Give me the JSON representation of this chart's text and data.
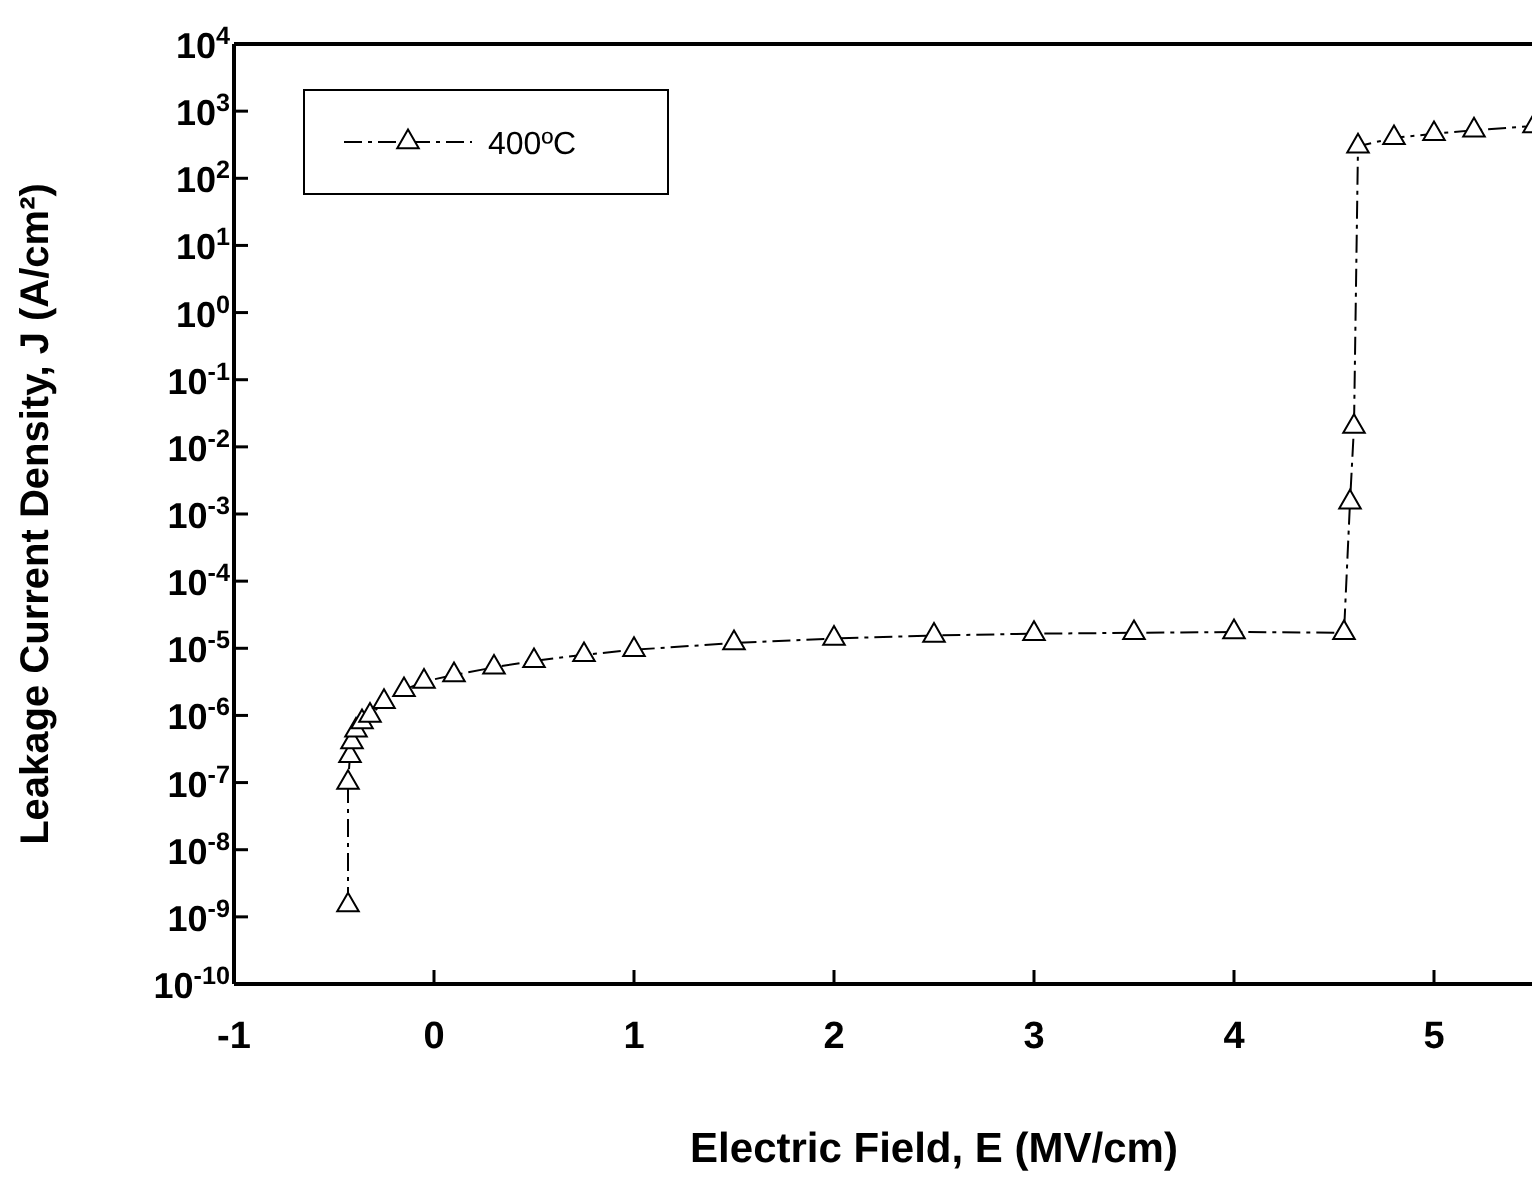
{
  "chart_data": {
    "type": "line",
    "xlabel": "Electric Field, E (MV/cm)",
    "ylabel": "Leakage Current Density, J (A/cm²)",
    "log": "y",
    "xlim": [
      -1,
      5.5
    ],
    "xticks": [
      -1,
      0,
      1,
      2,
      3,
      4,
      5
    ],
    "ylim": [
      1e-10,
      10000
    ],
    "yticks": [
      {
        "value": 1e-10,
        "label": "10$^{-10}$"
      },
      {
        "value": 1e-09,
        "label": "10$^{-9}$"
      },
      {
        "value": 1e-08,
        "label": "10$^{-8}$"
      },
      {
        "value": 1e-07,
        "label": "10$^{-7}$"
      },
      {
        "value": 1e-06,
        "label": "10$^{-6}$"
      },
      {
        "value": 1e-05,
        "label": "10$^{-5}$"
      },
      {
        "value": 0.0001,
        "label": "10$^{-4}$"
      },
      {
        "value": 0.001,
        "label": "10$^{-3}$"
      },
      {
        "value": 0.01,
        "label": "10$^{-2}$"
      },
      {
        "value": 0.1,
        "label": "10$^{-1}$"
      },
      {
        "value": 1,
        "label": "10$^{0}$"
      },
      {
        "value": 10,
        "label": "10$^{1}$"
      },
      {
        "value": 100,
        "label": "10$^{2}$"
      },
      {
        "value": 1000,
        "label": "10$^{3}$"
      },
      {
        "value": 10000,
        "label": "10$^{4}$"
      }
    ],
    "legend": "top left",
    "marker": "triangle",
    "line_style": "dashed",
    "grid": false,
    "series": [
      {
        "name": "400ºC",
        "color": "#000000",
        "x": [
          -0.43,
          -0.43,
          -0.42,
          -0.41,
          -0.39,
          -0.36,
          -0.32,
          -0.25,
          -0.15,
          -0.05,
          0.1,
          0.3,
          0.5,
          0.75,
          1.0,
          1.5,
          2.0,
          2.5,
          3.0,
          3.5,
          4.0,
          4.55,
          4.58,
          4.6,
          4.62,
          4.8,
          5.0,
          5.2,
          5.5
        ],
        "values": [
          1.5e-09,
          1e-07,
          2.5e-07,
          4e-07,
          6e-07,
          8e-07,
          1e-06,
          1.6e-06,
          2.4e-06,
          3.2e-06,
          4e-06,
          5.2e-06,
          6.5e-06,
          8e-06,
          9.5e-06,
          1.2e-05,
          1.4e-05,
          1.55e-05,
          1.65e-05,
          1.7e-05,
          1.75e-05,
          1.7e-05,
          0.0015,
          0.02,
          300,
          400,
          460,
          520,
          600
        ]
      }
    ]
  }
}
